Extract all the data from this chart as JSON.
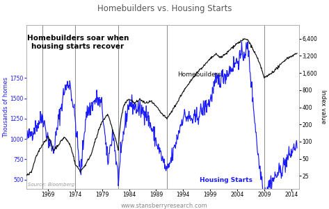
{
  "title": "Homebuilders vs. Housing Starts",
  "subtitle": "www.stansberryresearch.com",
  "annotation": "Homebuilders soar when\nhousing starts recover",
  "label_homebuilders": "Homebuilders",
  "label_housing": "Housing Starts",
  "source_text": "Source: Bloomberg",
  "ylabel_left": "Thousands of homes",
  "ylabel_right": "Index value",
  "vlines": [
    1968,
    1974,
    1982,
    1991,
    2009
  ],
  "color_homebuilders": "#111111",
  "color_housing": "#1a1aff",
  "color_vline": "#777777",
  "background": "#ffffff",
  "yticks_right": [
    25,
    50,
    100,
    200,
    400,
    800,
    1600,
    3200,
    6400
  ],
  "yticks_left": [
    500,
    750,
    1000,
    1250,
    1500,
    1750
  ],
  "xlim": [
    1965.0,
    2015.5
  ],
  "xticks": [
    1969,
    1974,
    1979,
    1984,
    1989,
    1994,
    1999,
    2004,
    2009,
    2014
  ]
}
